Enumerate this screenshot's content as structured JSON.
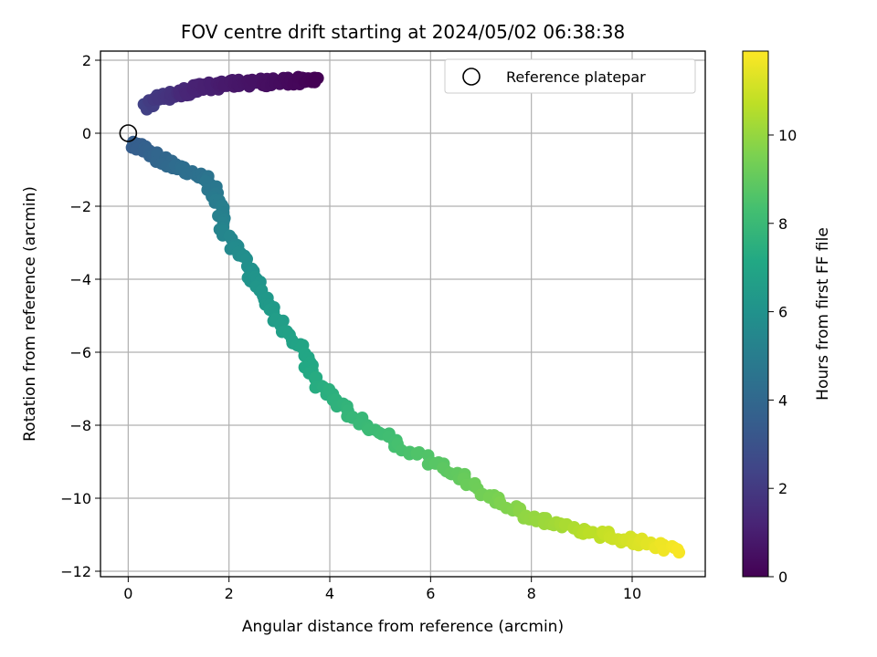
{
  "chart_data": {
    "type": "scatter",
    "title": "FOV centre drift starting at 2024/05/02 06:38:38",
    "xlabel": "Angular distance from reference (arcmin)",
    "ylabel": "Rotation from reference (arcmin)",
    "colorbar_label": "Hours from first FF file",
    "xlim": [
      -0.55,
      11.45
    ],
    "ylim": [
      -12.15,
      2.25
    ],
    "clim": [
      0,
      11.9
    ],
    "xticks": [
      0,
      2,
      4,
      6,
      8,
      10
    ],
    "yticks": [
      -12,
      -10,
      -8,
      -6,
      -4,
      -2,
      0,
      2
    ],
    "colorbar_ticks": [
      0,
      2,
      4,
      6,
      8,
      10
    ],
    "colormap": "viridis",
    "grid": true,
    "legend": {
      "position": "upper right",
      "entries": [
        "Reference platepar"
      ]
    },
    "reference_point": {
      "x": 0,
      "y": 0
    },
    "path_segments": [
      {
        "t": [
          2.3,
          2.0,
          1.7,
          1.4,
          1.2,
          1.0,
          0.8,
          0.6,
          0.4,
          0.2,
          0.0
        ],
        "x": [
          0.4,
          0.5,
          0.85,
          1.1,
          1.3,
          1.7,
          2.0,
          2.5,
          3.0,
          3.4,
          3.7
        ],
        "y": [
          0.7,
          0.95,
          1.05,
          1.1,
          1.2,
          1.3,
          1.35,
          1.4,
          1.4,
          1.45,
          1.4
        ]
      },
      {
        "t": [
          3.5,
          3.8,
          4.2,
          4.5,
          4.9,
          5.3,
          5.7,
          6.1,
          6.5,
          6.9,
          7.3,
          7.8,
          8.3,
          8.8,
          9.3,
          9.8,
          10.3,
          10.8,
          11.3,
          11.8
        ],
        "x": [
          0.1,
          0.5,
          1.0,
          1.5,
          1.8,
          1.9,
          2.2,
          2.5,
          2.9,
          3.4,
          3.7,
          4.4,
          5.3,
          6.2,
          7.0,
          7.8,
          8.6,
          9.4,
          10.2,
          10.9
        ],
        "y": [
          -0.3,
          -0.6,
          -0.95,
          -1.2,
          -1.8,
          -2.6,
          -3.3,
          -4.0,
          -5.0,
          -5.8,
          -6.8,
          -7.7,
          -8.5,
          -9.1,
          -9.8,
          -10.4,
          -10.8,
          -11.0,
          -11.2,
          -11.4
        ]
      }
    ]
  }
}
